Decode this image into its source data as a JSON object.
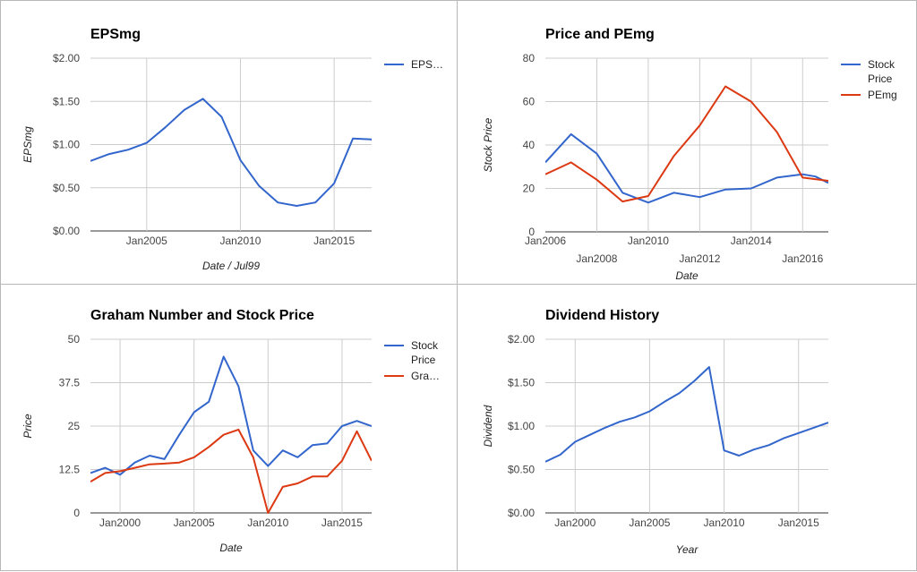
{
  "chart_data": [
    {
      "type": "line",
      "title": "EPSmg",
      "xlabel": "Date / Jul99",
      "ylabel": "EPSmg",
      "xlim": [
        2002.0,
        2017.0
      ],
      "ylim": [
        0,
        2
      ],
      "y_ticks": [
        0,
        0.5,
        1,
        1.5,
        2
      ],
      "y_tick_labels": [
        "$0.00",
        "$0.50",
        "$1.00",
        "$1.50",
        "$2.00"
      ],
      "x_ticks": [
        2005,
        2010,
        2015
      ],
      "x_tick_labels": [
        "Jan2005",
        "Jan2010",
        "Jan2015"
      ],
      "grid": true,
      "legend_position": "right",
      "series": [
        {
          "name": "EPS…",
          "color": "#3366cc",
          "x": [
            2002,
            2003,
            2004,
            2005,
            2006,
            2007,
            2008,
            2009,
            2010,
            2011,
            2012,
            2013,
            2014,
            2015,
            2016,
            2017,
            2017.3
          ],
          "y": [
            0.81,
            0.89,
            0.94,
            1.02,
            1.2,
            1.4,
            1.53,
            1.32,
            0.82,
            0.52,
            0.33,
            0.29,
            0.33,
            0.55,
            1.07,
            1.06,
            0.94
          ]
        }
      ]
    },
    {
      "type": "line",
      "title": "Price and PEmg",
      "xlabel": "Date",
      "ylabel": "Stock Price",
      "xlim": [
        2006,
        2017
      ],
      "ylim": [
        0,
        80
      ],
      "y_ticks": [
        0,
        20,
        40,
        60,
        80
      ],
      "y_tick_labels": [
        "0",
        "20",
        "40",
        "60",
        "80"
      ],
      "x_ticks": [
        2006,
        2008,
        2010,
        2012,
        2014,
        2016
      ],
      "x_tick_labels": [
        "Jan2006",
        "Jan2008",
        "Jan2010",
        "Jan2012",
        "Jan2014",
        "Jan2016"
      ],
      "grid": true,
      "legend_position": "right",
      "series": [
        {
          "name": "Stock Price",
          "color": "#3366cc",
          "x": [
            2006,
            2007,
            2008,
            2009,
            2010,
            2011,
            2012,
            2013,
            2014,
            2015,
            2016,
            2016.5,
            2017
          ],
          "y": [
            32,
            45,
            36,
            18,
            13.5,
            18,
            16,
            19.5,
            20,
            25,
            26.5,
            25.5,
            22.5
          ]
        },
        {
          "name": "PEmg",
          "color": "#dc3912",
          "x": [
            2006,
            2007,
            2008,
            2009,
            2010,
            2011,
            2012,
            2013,
            2014,
            2015,
            2016,
            2017
          ],
          "y": [
            26.5,
            32,
            24,
            14,
            16.5,
            35,
            49,
            67,
            60,
            46,
            25,
            23.5
          ]
        }
      ]
    },
    {
      "type": "line",
      "title": "Graham Number and Stock Price",
      "xlabel": "Date",
      "ylabel": "Price",
      "xlim": [
        1998,
        2017
      ],
      "ylim": [
        0,
        50
      ],
      "y_ticks": [
        0,
        12.5,
        25,
        37.5,
        50
      ],
      "y_tick_labels": [
        "0",
        "12.5",
        "25",
        "37.5",
        "50"
      ],
      "x_ticks": [
        2000,
        2005,
        2010,
        2015
      ],
      "x_tick_labels": [
        "Jan2000",
        "Jan2005",
        "Jan2010",
        "Jan2015"
      ],
      "grid": true,
      "legend_position": "right",
      "series": [
        {
          "name": "Stock Price",
          "color": "#3366cc",
          "x": [
            1998,
            1999,
            2000,
            2001,
            2002,
            2003,
            2004,
            2005,
            2006,
            2007,
            2008,
            2009,
            2010,
            2011,
            2012,
            2013,
            2014,
            2015,
            2016,
            2017
          ],
          "y": [
            11.5,
            13,
            11,
            14.5,
            16.5,
            15.5,
            22.5,
            29,
            32,
            45,
            36.5,
            18,
            13.5,
            18,
            16,
            19.5,
            20,
            25,
            26.5,
            25
          ]
        },
        {
          "name": "Gra…",
          "color": "#dc3912",
          "x": [
            1998,
            1999,
            2000,
            2001,
            2002,
            2003,
            2004,
            2005,
            2006,
            2007,
            2008,
            2009,
            2010,
            2011,
            2012,
            2013,
            2014,
            2015,
            2016,
            2017
          ],
          "y": [
            9,
            11.5,
            12,
            13,
            14,
            14.2,
            14.5,
            16,
            19,
            22.5,
            24,
            16,
            0,
            7.5,
            8.5,
            10.5,
            10.5,
            15,
            23.5,
            15
          ]
        }
      ]
    },
    {
      "type": "line",
      "title": "Dividend History",
      "xlabel": "Year",
      "ylabel": "Dividend",
      "xlim": [
        1998,
        2017
      ],
      "ylim": [
        0,
        2
      ],
      "y_ticks": [
        0,
        0.5,
        1,
        1.5,
        2
      ],
      "y_tick_labels": [
        "$0.00",
        "$0.50",
        "$1.00",
        "$1.50",
        "$2.00"
      ],
      "x_ticks": [
        2000,
        2005,
        2010,
        2015
      ],
      "x_tick_labels": [
        "Jan2000",
        "Jan2005",
        "Jan2010",
        "Jan2015"
      ],
      "grid": true,
      "legend_position": "none",
      "series": [
        {
          "name": "",
          "color": "#3366cc",
          "x": [
            1998,
            1999,
            2000,
            2001,
            2002,
            2003,
            2004,
            2005,
            2006,
            2007,
            2008,
            2009,
            2010,
            2011,
            2012,
            2013,
            2014,
            2015,
            2016,
            2017
          ],
          "y": [
            0.59,
            0.67,
            0.82,
            0.9,
            0.98,
            1.05,
            1.1,
            1.17,
            1.28,
            1.38,
            1.52,
            1.68,
            0.72,
            0.66,
            0.73,
            0.78,
            0.86,
            0.92,
            0.98,
            1.04
          ]
        }
      ]
    }
  ]
}
